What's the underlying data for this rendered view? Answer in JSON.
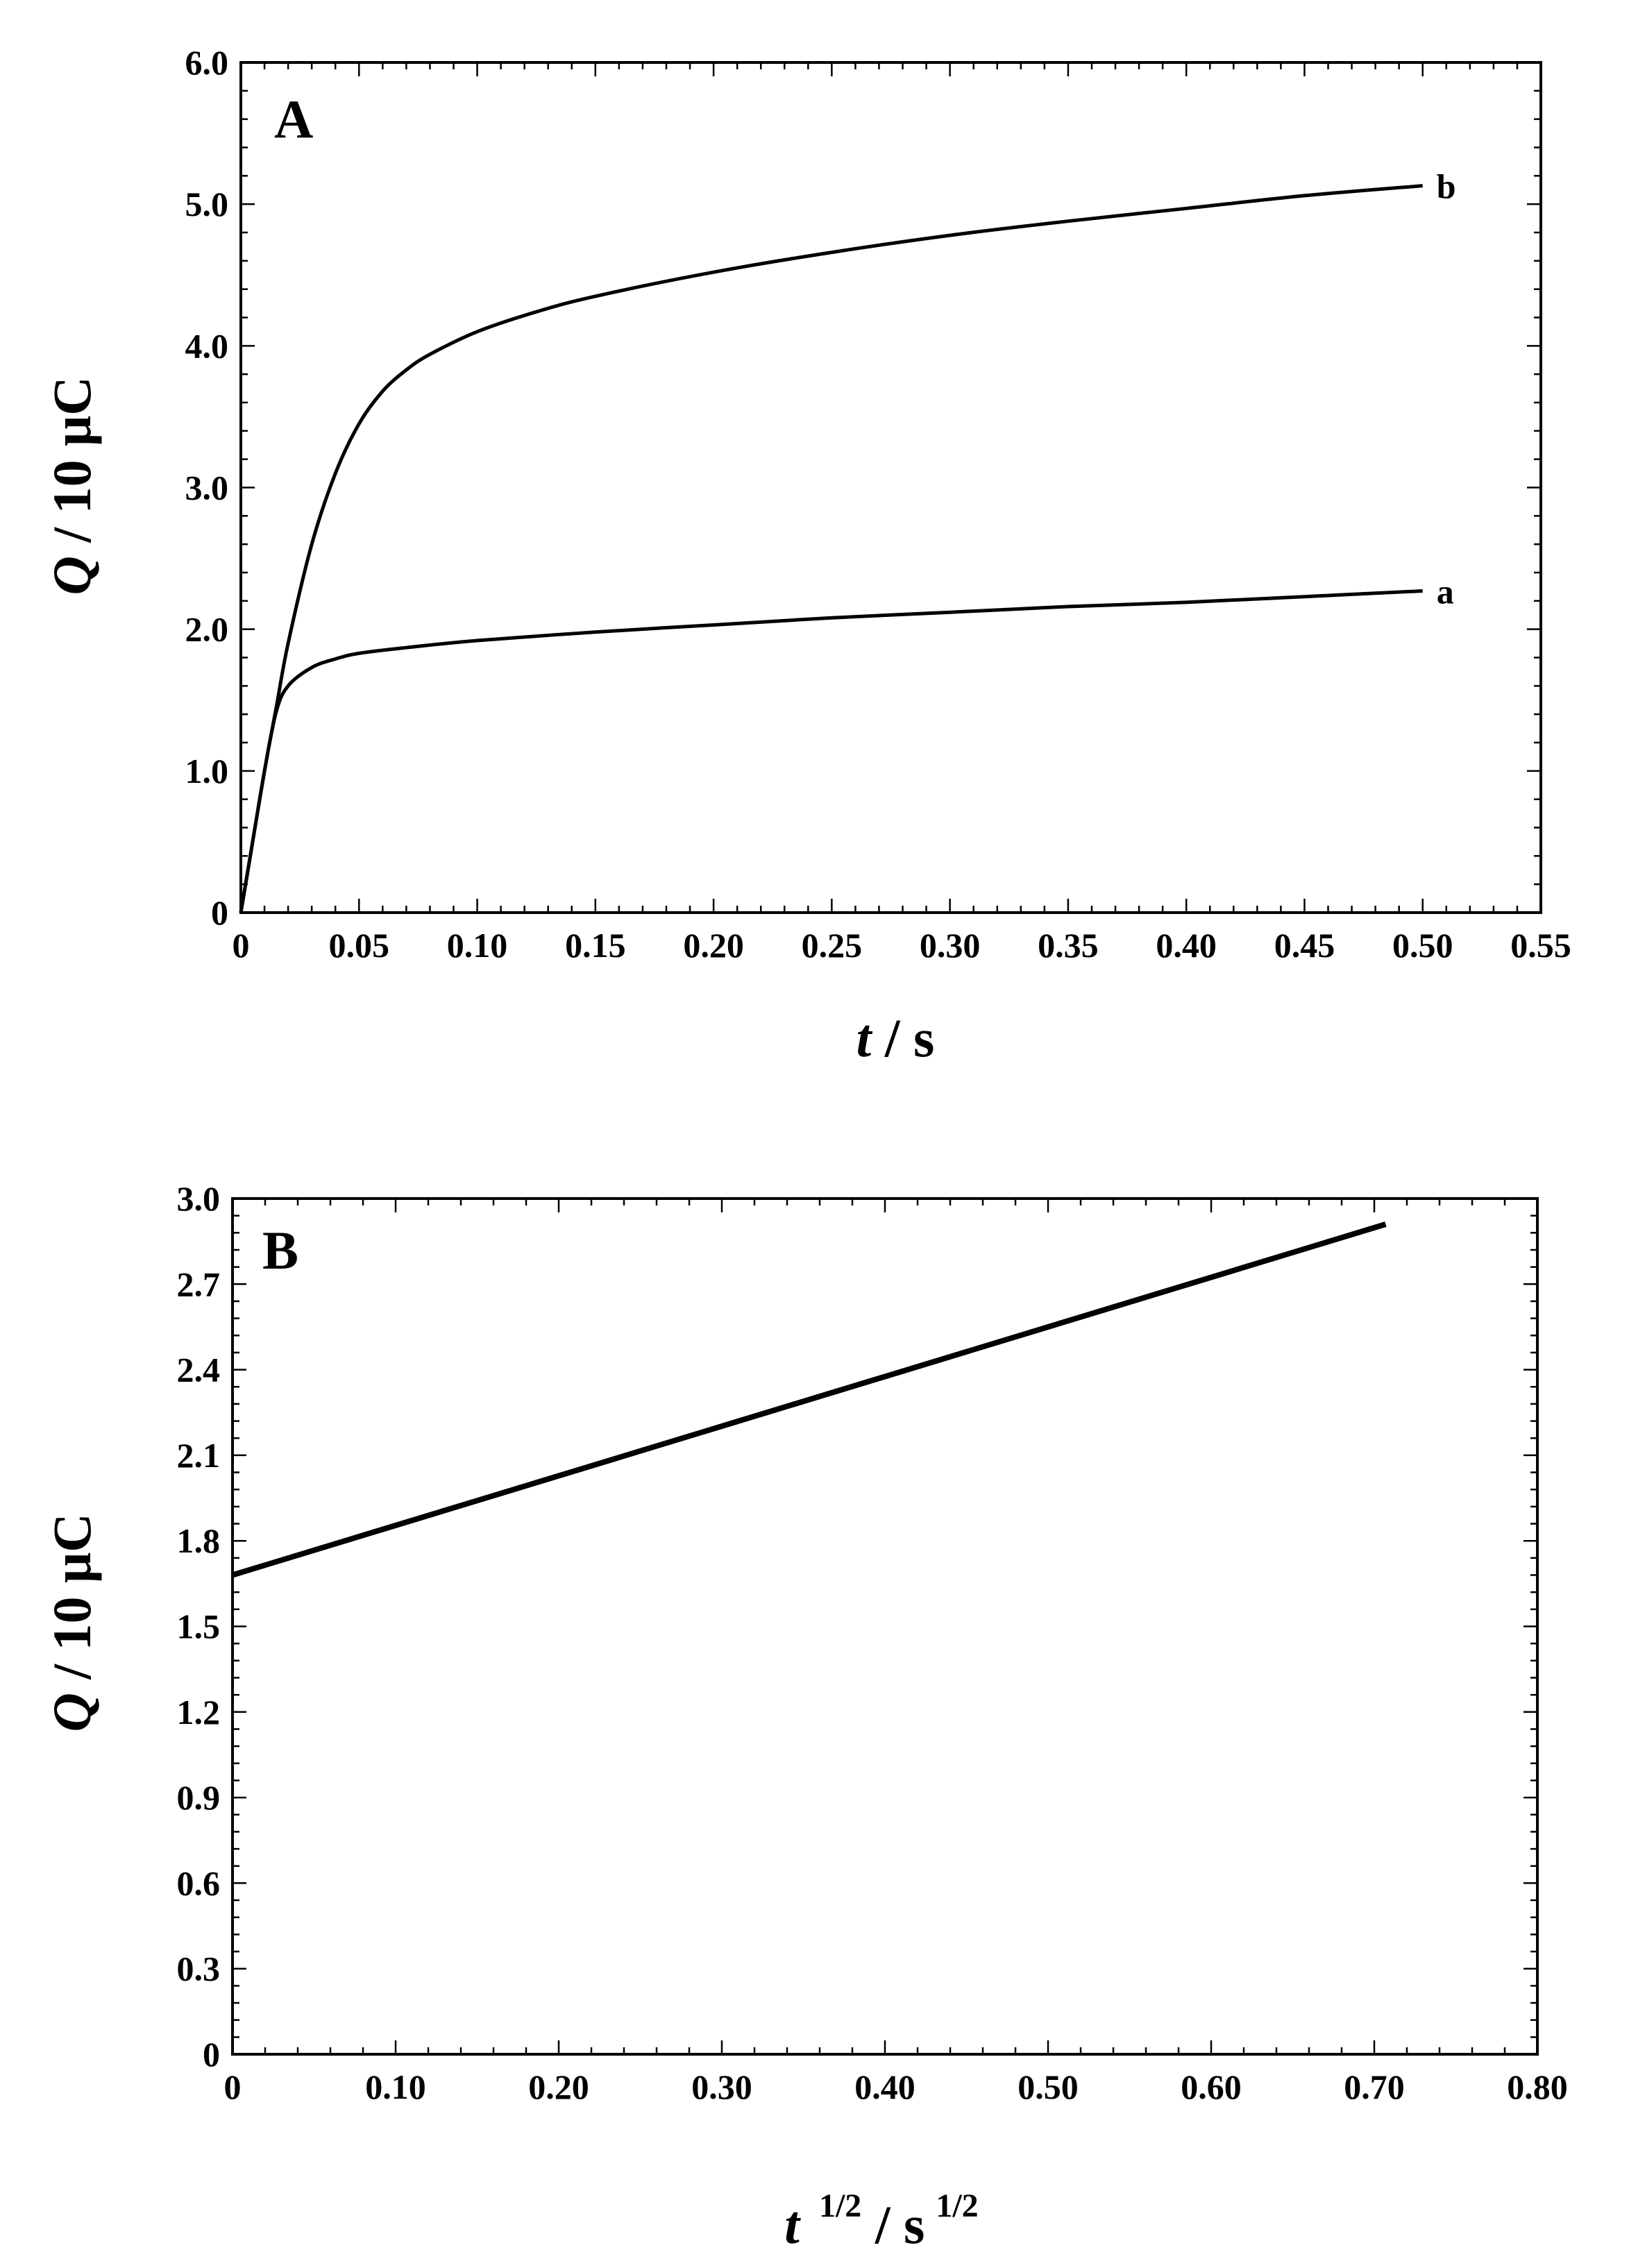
{
  "chart_data": [
    {
      "type": "line",
      "panel_label": "A",
      "xlabel": {
        "var": "t",
        "unit": " / s"
      },
      "ylabel": {
        "var": "Q",
        "unit": " / 10 μC"
      },
      "xlim": [
        0,
        0.55
      ],
      "ylim": [
        0,
        6.0
      ],
      "x_ticks": [
        0,
        0.05,
        0.1,
        0.15,
        0.2,
        0.25,
        0.3,
        0.35,
        0.4,
        0.45,
        0.5,
        0.55
      ],
      "x_tick_labels": [
        "0",
        "0.05",
        "0.10",
        "0.15",
        "0.20",
        "0.25",
        "0.30",
        "0.35",
        "0.40",
        "0.45",
        "0.50",
        "0.55"
      ],
      "y_ticks": [
        0,
        1.0,
        2.0,
        3.0,
        4.0,
        5.0,
        6.0
      ],
      "y_tick_labels": [
        "0",
        "1.0",
        "2.0",
        "3.0",
        "4.0",
        "5.0",
        "6.0"
      ],
      "grid": false,
      "series": [
        {
          "name": "a",
          "x": [
            0,
            0.005,
            0.01,
            0.015,
            0.02,
            0.03,
            0.04,
            0.05,
            0.07,
            0.1,
            0.15,
            0.2,
            0.25,
            0.3,
            0.35,
            0.4,
            0.45,
            0.5
          ],
          "values": [
            0,
            0.5,
            1.0,
            1.42,
            1.6,
            1.73,
            1.79,
            1.83,
            1.87,
            1.92,
            1.98,
            2.03,
            2.08,
            2.12,
            2.16,
            2.19,
            2.23,
            2.27
          ]
        },
        {
          "name": "b",
          "x": [
            0,
            0.005,
            0.01,
            0.015,
            0.02,
            0.03,
            0.04,
            0.05,
            0.06,
            0.07,
            0.08,
            0.1,
            0.125,
            0.15,
            0.2,
            0.25,
            0.3,
            0.35,
            0.4,
            0.45,
            0.5
          ],
          "values": [
            0,
            0.5,
            1.0,
            1.45,
            1.9,
            2.6,
            3.1,
            3.45,
            3.68,
            3.83,
            3.94,
            4.1,
            4.24,
            4.35,
            4.52,
            4.66,
            4.78,
            4.88,
            4.97,
            5.06,
            5.13
          ]
        }
      ]
    },
    {
      "type": "line",
      "panel_label": "B",
      "xlabel": {
        "var": "t",
        "sup1": "1/2",
        "unit": " / s",
        "sup2": "1/2"
      },
      "ylabel": {
        "var": "Q",
        "unit": " / 10 μC"
      },
      "xlim": [
        0,
        0.8
      ],
      "ylim": [
        0,
        3.0
      ],
      "x_ticks": [
        0,
        0.1,
        0.2,
        0.3,
        0.4,
        0.5,
        0.6,
        0.7,
        0.8
      ],
      "x_tick_labels": [
        "0",
        "0.10",
        "0.20",
        "0.30",
        "0.40",
        "0.50",
        "0.60",
        "0.70",
        "0.80"
      ],
      "y_ticks": [
        0,
        0.3,
        0.6,
        0.9,
        1.2,
        1.5,
        1.8,
        2.1,
        2.4,
        2.7,
        3.0
      ],
      "y_tick_labels": [
        "0",
        "0.3",
        "0.6",
        "0.9",
        "1.2",
        "1.5",
        "1.8",
        "2.1",
        "2.4",
        "2.7",
        "3.0"
      ],
      "grid": false,
      "series": [
        {
          "x": [
            0,
            0.707
          ],
          "values": [
            1.68,
            2.91
          ]
        }
      ]
    }
  ]
}
